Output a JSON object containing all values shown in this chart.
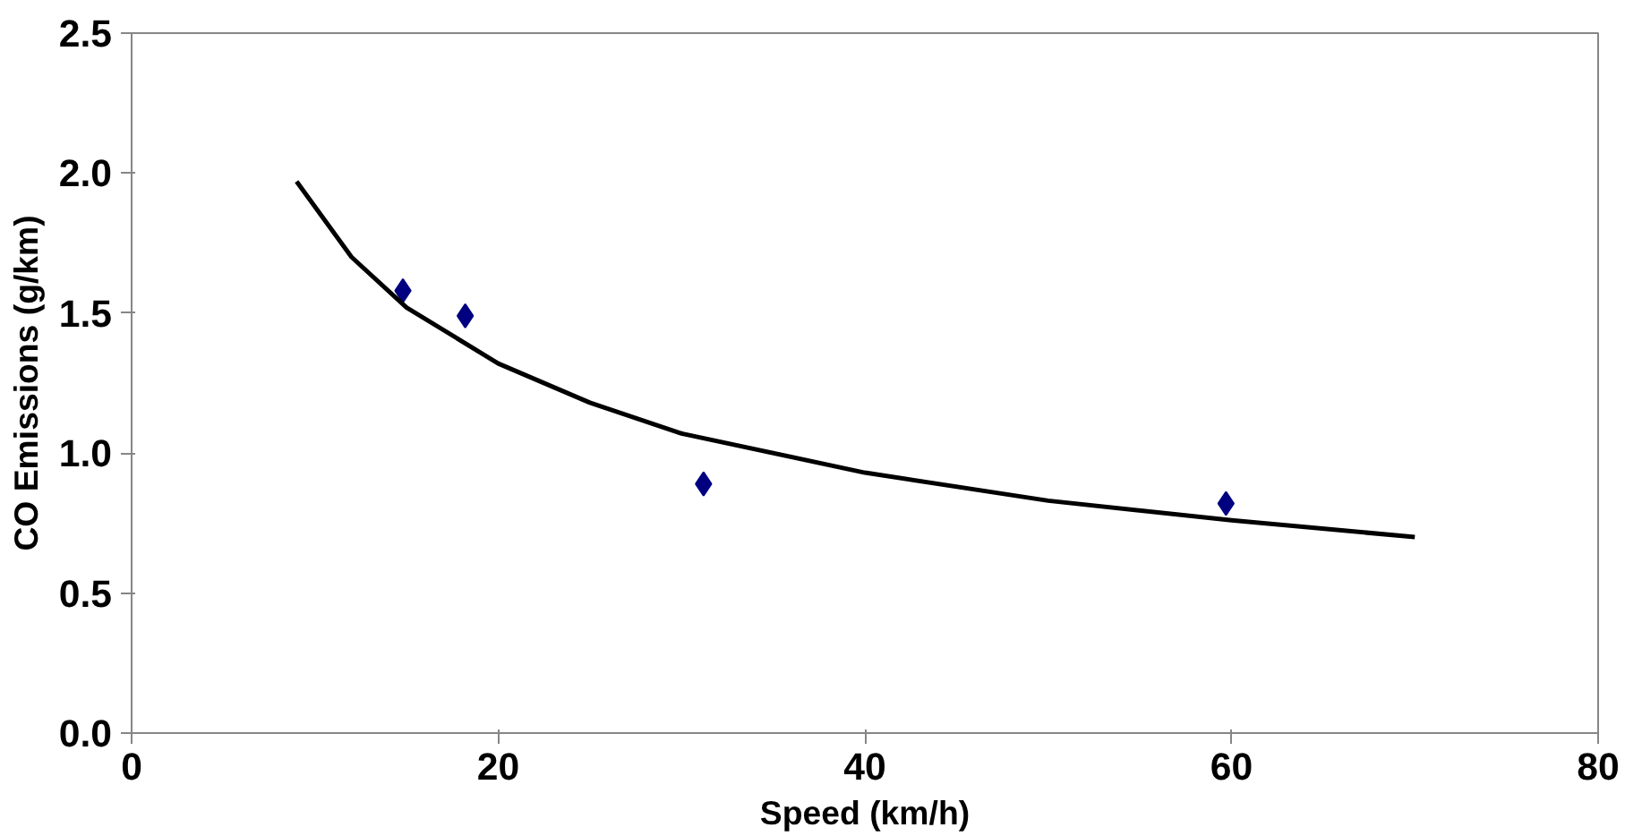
{
  "chart_data": {
    "type": "scatter",
    "xlabel": "Speed (km/h)",
    "ylabel": "CO Emissions (g/km)",
    "series": [
      {
        "color": "#000080",
        "marker": "diamond",
        "x": [
          14.8,
          18.2,
          31.2,
          59.7
        ],
        "values": [
          1.58,
          1.49,
          0.89,
          0.82
        ]
      },
      {
        "type": "line",
        "color": "#000000",
        "marker": "none",
        "line_style": "solid",
        "x": [
          9,
          12,
          15,
          20,
          25,
          30,
          40,
          50,
          60,
          70
        ],
        "values": [
          1.97,
          1.7,
          1.52,
          1.32,
          1.18,
          1.07,
          0.93,
          0.83,
          0.76,
          0.7
        ]
      }
    ],
    "xlim": [
      0,
      80
    ],
    "xticks": [
      0,
      20,
      40,
      60,
      80
    ],
    "ylim": [
      0,
      2.5
    ],
    "yticks": [
      {
        "value": 0,
        "label": "0.0"
      },
      {
        "value": 0.5,
        "label": "0.5"
      },
      {
        "value": 1,
        "label": "1.0"
      },
      {
        "value": 1.5,
        "label": "1.5"
      },
      {
        "value": 2,
        "label": "2.0"
      },
      {
        "value": 2.5,
        "label": "2.5"
      }
    ],
    "grid": false
  }
}
